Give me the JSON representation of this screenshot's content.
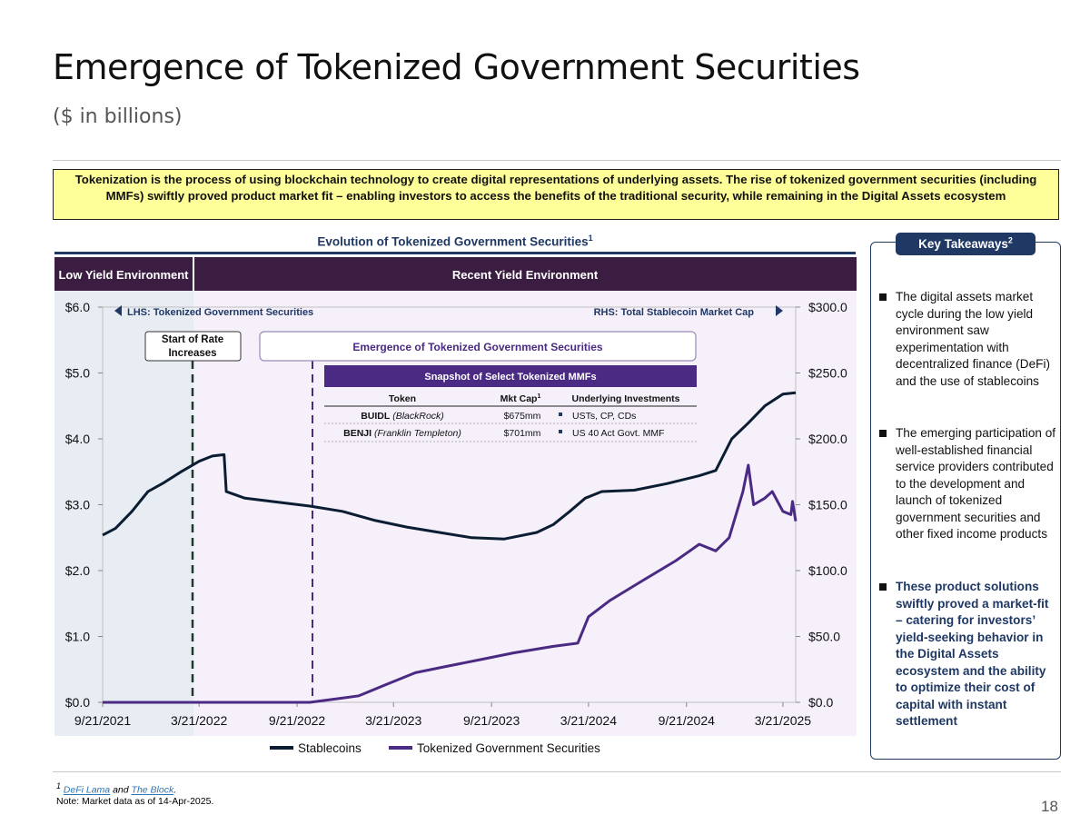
{
  "header": {
    "title": "Emergence of Tokenized Government Securities",
    "subtitle": "($ in billions)"
  },
  "intro": {
    "text": "Tokenization is the process of using blockchain technology to create digital representations of underlying assets. The rise of tokenized government securities (including MMFs) swiftly proved product market fit – enabling investors to access the benefits of the traditional security, while remaining in the Digital Assets ecosystem"
  },
  "chart_header": {
    "title": "Evolution of Tokenized Government Securities",
    "title_sup": "1"
  },
  "chart_data": {
    "type": "line",
    "x_ticks": [
      "9/21/2021",
      "3/21/2022",
      "9/21/2022",
      "3/21/2023",
      "9/21/2023",
      "3/21/2024",
      "9/21/2024",
      "3/21/2025"
    ],
    "x_range": [
      "2021-09-21",
      "2025-04-14"
    ],
    "y_left": {
      "ticks": [
        "$0.0",
        "$1.0",
        "$2.0",
        "$3.0",
        "$4.0",
        "$5.0",
        "$6.0"
      ],
      "range": [
        0,
        6
      ]
    },
    "y_right": {
      "ticks": [
        "$0.0",
        "$50.0",
        "$100.0",
        "$150.0",
        "$200.0",
        "$250.0",
        "$300.0"
      ],
      "range": [
        0,
        300
      ]
    },
    "legend_position": "bottom",
    "series": [
      {
        "name": "Stablecoins",
        "axis": "right",
        "color": "#0b1d33",
        "points": [
          [
            "2021-09-21",
            127
          ],
          [
            "2021-10-15",
            132
          ],
          [
            "2021-11-15",
            145
          ],
          [
            "2021-12-15",
            160
          ],
          [
            "2022-01-15",
            167
          ],
          [
            "2022-02-15",
            175
          ],
          [
            "2022-03-21",
            183
          ],
          [
            "2022-04-15",
            187
          ],
          [
            "2022-05-07",
            188
          ],
          [
            "2022-05-11",
            160
          ],
          [
            "2022-06-15",
            155
          ],
          [
            "2022-08-15",
            152
          ],
          [
            "2022-10-15",
            149
          ],
          [
            "2022-12-15",
            145
          ],
          [
            "2023-02-15",
            138
          ],
          [
            "2023-04-15",
            133
          ],
          [
            "2023-06-15",
            129
          ],
          [
            "2023-08-15",
            125
          ],
          [
            "2023-10-15",
            124
          ],
          [
            "2023-12-15",
            129
          ],
          [
            "2024-01-15",
            135
          ],
          [
            "2024-02-15",
            145
          ],
          [
            "2024-03-15",
            155
          ],
          [
            "2024-04-15",
            160
          ],
          [
            "2024-06-15",
            161
          ],
          [
            "2024-08-15",
            166
          ],
          [
            "2024-10-15",
            172
          ],
          [
            "2024-11-15",
            176
          ],
          [
            "2024-12-15",
            200
          ],
          [
            "2025-01-15",
            212
          ],
          [
            "2025-02-15",
            225
          ],
          [
            "2025-03-21",
            234
          ],
          [
            "2025-04-14",
            235
          ]
        ]
      },
      {
        "name": "Tokenized Government Securities",
        "axis": "left",
        "color": "#4b2a83",
        "points": [
          [
            "2021-09-21",
            0.0
          ],
          [
            "2022-10-15",
            0.0
          ],
          [
            "2022-12-01",
            0.05
          ],
          [
            "2023-01-15",
            0.1
          ],
          [
            "2023-03-01",
            0.25
          ],
          [
            "2023-05-01",
            0.45
          ],
          [
            "2023-07-01",
            0.55
          ],
          [
            "2023-09-01",
            0.65
          ],
          [
            "2023-11-01",
            0.75
          ],
          [
            "2024-01-15",
            0.85
          ],
          [
            "2024-03-01",
            0.9
          ],
          [
            "2024-03-21",
            1.3
          ],
          [
            "2024-05-01",
            1.55
          ],
          [
            "2024-07-01",
            1.85
          ],
          [
            "2024-09-01",
            2.15
          ],
          [
            "2024-10-15",
            2.4
          ],
          [
            "2024-11-15",
            2.3
          ],
          [
            "2024-12-10",
            2.5
          ],
          [
            "2025-01-05",
            3.2
          ],
          [
            "2025-01-15",
            3.6
          ],
          [
            "2025-01-25",
            3.0
          ],
          [
            "2025-02-15",
            3.1
          ],
          [
            "2025-03-01",
            3.2
          ],
          [
            "2025-03-21",
            2.9
          ],
          [
            "2025-04-05",
            2.85
          ],
          [
            "2025-04-08",
            3.05
          ],
          [
            "2025-04-14",
            2.75
          ]
        ]
      }
    ]
  },
  "chart_labels": {
    "band_low": "Low Yield Environment",
    "band_recent": "Recent Yield Environment",
    "lhs_label": "LHS: Tokenized Government Securities",
    "rhs_label": "RHS: Total Stablecoin Market Cap",
    "rate_box_line1": "Start of Rate",
    "rate_box_line2": "Increases",
    "emergence_label": "Emergence of Tokenized Government Securities",
    "legend_stable": "Stablecoins",
    "legend_tgs": "Tokenized Government Securities"
  },
  "mmf_table": {
    "title": "Snapshot of Select Tokenized MMFs",
    "headers": [
      "Token",
      "Mkt Cap",
      "Underlying Investments"
    ],
    "mkt_cap_sup": "1",
    "rows": [
      {
        "token": "BUIDL",
        "issuer": "(BlackRock)",
        "mkt_cap": "$675mm",
        "underlying": "USTs, CP, CDs"
      },
      {
        "token": "BENJI",
        "issuer": "(Franklin Templeton)",
        "mkt_cap": "$701mm",
        "underlying": "US 40 Act Govt. MMF"
      }
    ]
  },
  "takeaways": {
    "heading": "Key Takeaways",
    "heading_sup": "2",
    "items": [
      "The digital assets market cycle during the low yield environment saw experimentation with decentralized finance (DeFi) and the use of stablecoins",
      "The emerging participation of well-established financial service providers contributed to the development and launch of tokenized government securities and other fixed income products",
      "These product solutions swiftly proved a market-fit – catering for investors’ yield-seeking behavior in the Digital Assets ecosystem and the ability to optimize their cost of capital with instant settlement"
    ]
  },
  "footer": {
    "footnote_sup": "1",
    "source_1": "DeFi Lama",
    "source_and": "and",
    "source_2": "The Block",
    "note": "Note: Market data as of 14-Apr-2025.",
    "page_number": "18"
  }
}
